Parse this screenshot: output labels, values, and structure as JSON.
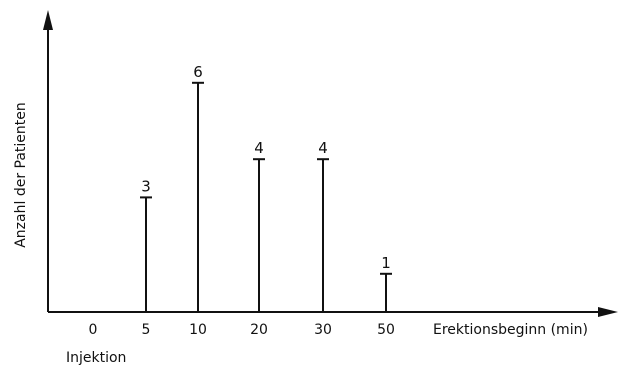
{
  "chart_data": {
    "type": "bar",
    "style": "stem",
    "categories": [
      "0",
      "5",
      "10",
      "20",
      "30",
      "50"
    ],
    "values": [
      null,
      3,
      6,
      4,
      4,
      1
    ],
    "labels": [
      "",
      "3",
      "6",
      "4",
      "4",
      "1"
    ],
    "title": "",
    "xlabel": "Erektionsbeginn (min)",
    "ylabel": "Anzahl der Patienten",
    "annotations": [
      {
        "text": "Injektion",
        "at_category": "0"
      }
    ],
    "ylim": [
      0,
      7.5
    ],
    "grid": false,
    "legend": "none"
  }
}
